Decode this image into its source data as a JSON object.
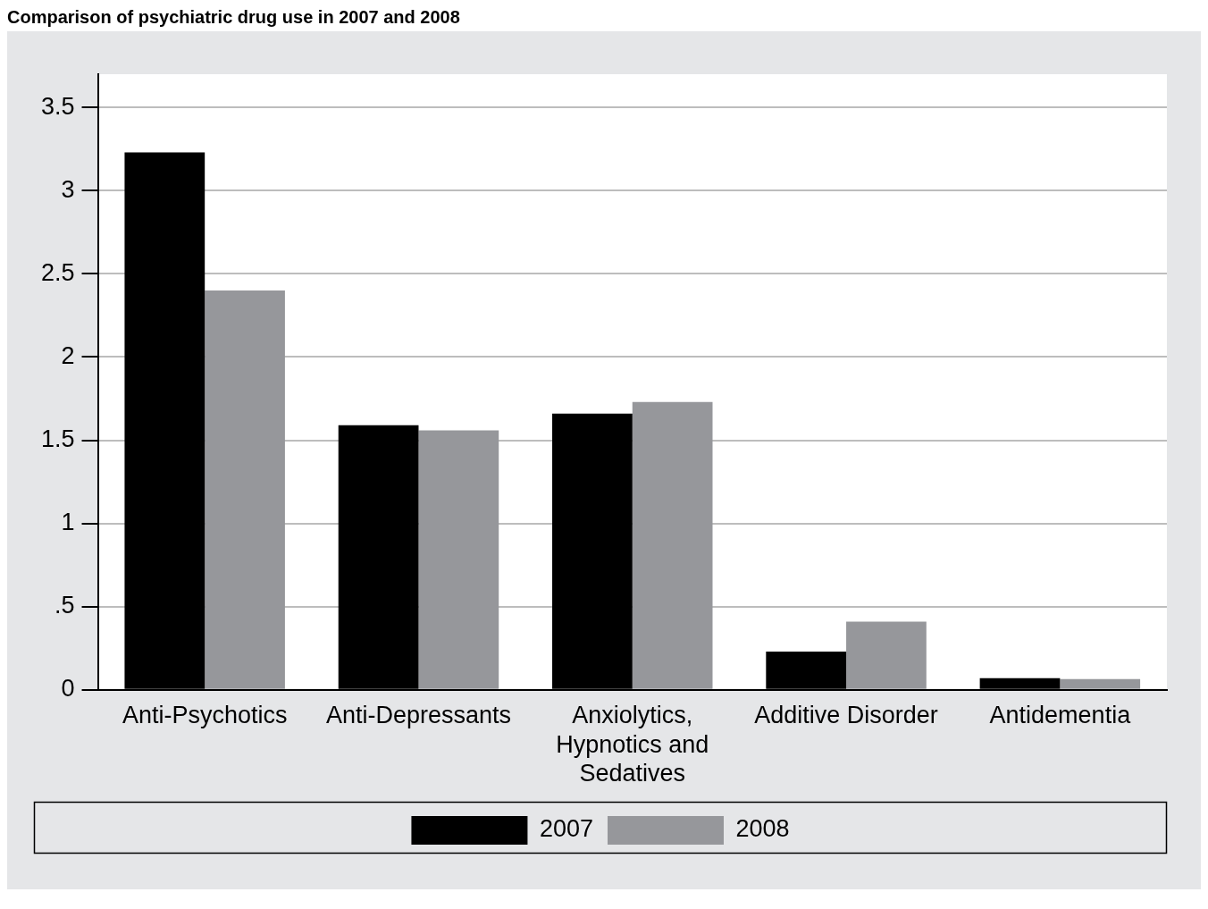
{
  "chart_data": {
    "type": "bar",
    "title": "Comparison of psychiatric drug use in 2007 and 2008",
    "categories": [
      "Anti-Psychotics",
      "Anti-Depressants",
      "Anxiolytics, Hypnotics and Sedatives",
      "Additive Disorder",
      "Antidementia"
    ],
    "series": [
      {
        "name": "2007",
        "color": "#000000",
        "values": [
          3.23,
          1.59,
          1.66,
          0.23,
          0.07
        ]
      },
      {
        "name": "2008",
        "color": "#96979b",
        "values": [
          2.4,
          1.56,
          1.73,
          0.41,
          0.065
        ]
      }
    ],
    "ylim": [
      0,
      3.7
    ],
    "yticks": [
      0,
      {
        "value": 0.5,
        "label": ".5"
      },
      1,
      1.5,
      2,
      2.5,
      3,
      3.5
    ],
    "grid": "y",
    "legend": "bottom"
  }
}
